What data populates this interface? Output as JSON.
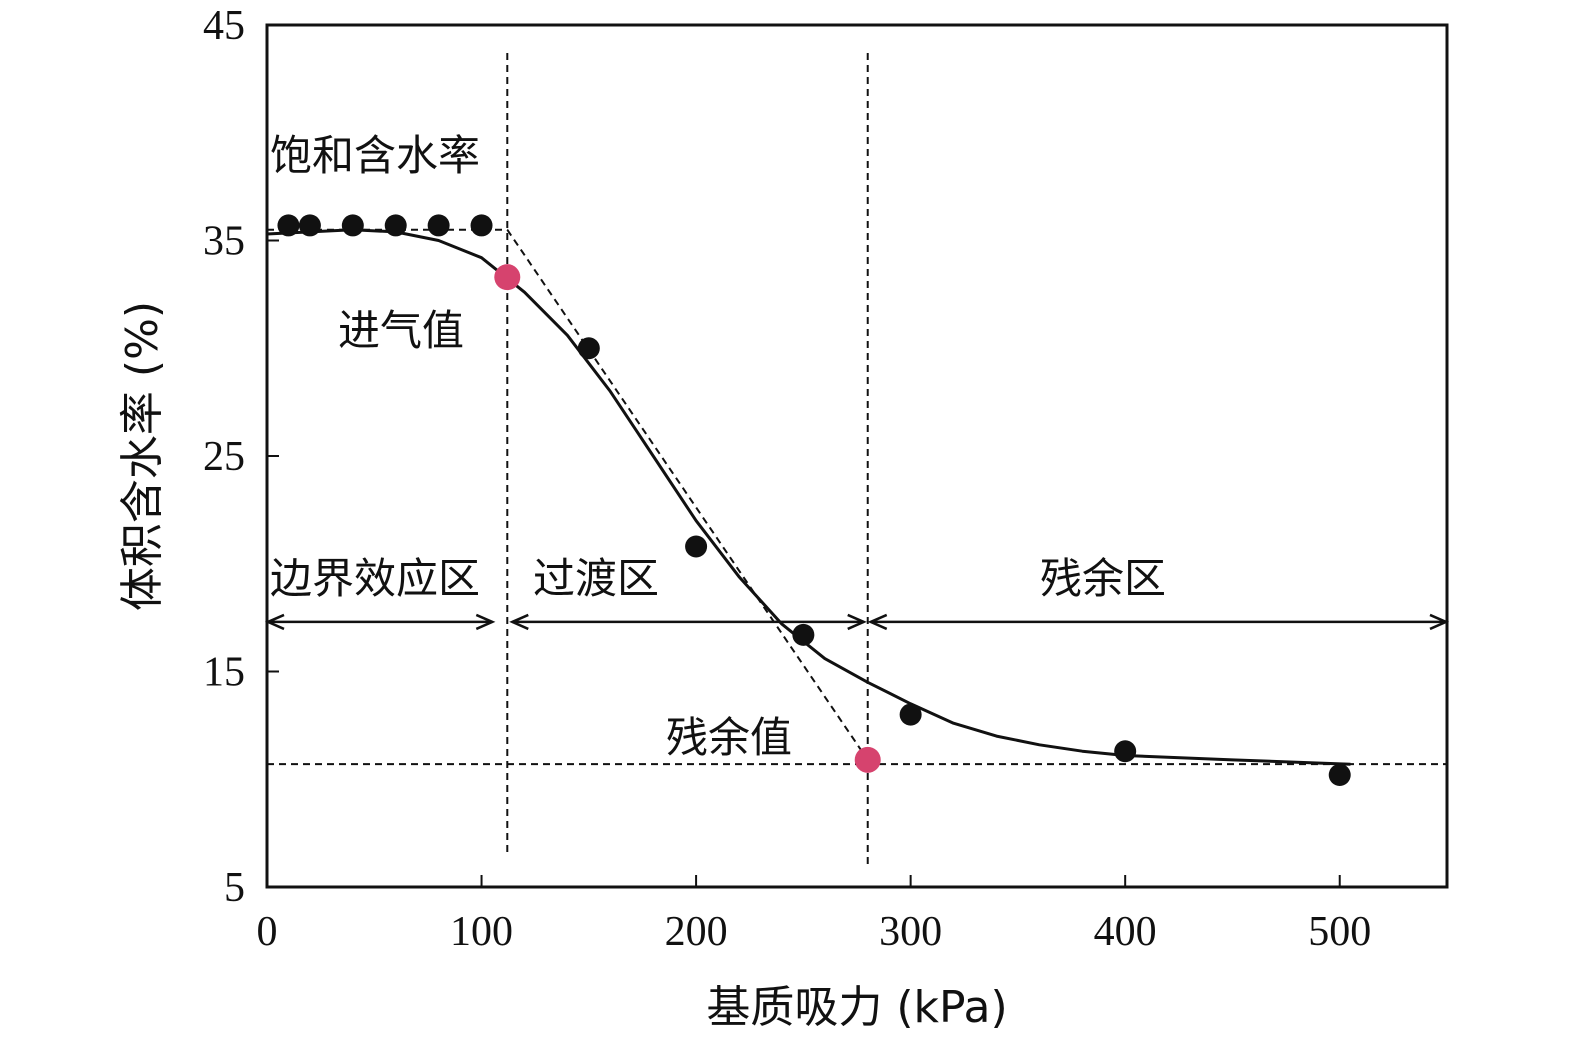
{
  "chart_data": {
    "type": "scatter",
    "xlabel": "基质吸力 (kPa)",
    "ylabel": "体积含水率 (%)",
    "xlim": [
      0,
      550
    ],
    "ylim": [
      5,
      45
    ],
    "xticks": [
      0,
      100,
      200,
      300,
      400,
      500
    ],
    "yticks": [
      5,
      15,
      25,
      35,
      45
    ],
    "grid": false,
    "series": [
      {
        "type": "scatter",
        "color": "#111111",
        "points": [
          [
            10,
            35.7
          ],
          [
            20,
            35.7
          ],
          [
            40,
            35.7
          ],
          [
            60,
            35.7
          ],
          [
            80,
            35.7
          ],
          [
            100,
            35.7
          ],
          [
            150,
            30.0
          ],
          [
            200,
            20.8
          ],
          [
            250,
            16.7
          ],
          [
            300,
            13.0
          ],
          [
            400,
            11.3
          ],
          [
            500,
            10.2
          ]
        ]
      },
      {
        "type": "line",
        "color": "#111111",
        "points": [
          [
            0,
            35.3
          ],
          [
            20,
            35.4
          ],
          [
            40,
            35.5
          ],
          [
            60,
            35.4
          ],
          [
            80,
            35.0
          ],
          [
            100,
            34.2
          ],
          [
            120,
            32.6
          ],
          [
            140,
            30.6
          ],
          [
            160,
            28.0
          ],
          [
            180,
            25.0
          ],
          [
            200,
            22.0
          ],
          [
            220,
            19.4
          ],
          [
            240,
            17.2
          ],
          [
            260,
            15.6
          ],
          [
            280,
            14.5
          ],
          [
            300,
            13.5
          ],
          [
            320,
            12.6
          ],
          [
            340,
            12.0
          ],
          [
            360,
            11.6
          ],
          [
            380,
            11.3
          ],
          [
            400,
            11.1
          ],
          [
            450,
            10.9
          ],
          [
            505,
            10.7
          ]
        ]
      },
      {
        "type": "scatter",
        "color": "#d6436e",
        "points": [
          [
            112,
            33.3
          ],
          [
            280,
            10.9
          ]
        ]
      }
    ],
    "annotations": {
      "saturated": "饱和含水率",
      "air_entry": "进气值",
      "residual_value": "残余值",
      "zone_boundary": "边界效应区",
      "zone_transition": "过渡区",
      "zone_residual": "残余区"
    },
    "reference_lines": {
      "saturation_y": 35.5,
      "residual_y": 10.7,
      "air_entry_x": 112,
      "residual_x": 280,
      "tangent": [
        [
          112,
          35.5
        ],
        [
          280,
          10.9
        ]
      ],
      "zone_arrow_y": 17.3
    }
  }
}
